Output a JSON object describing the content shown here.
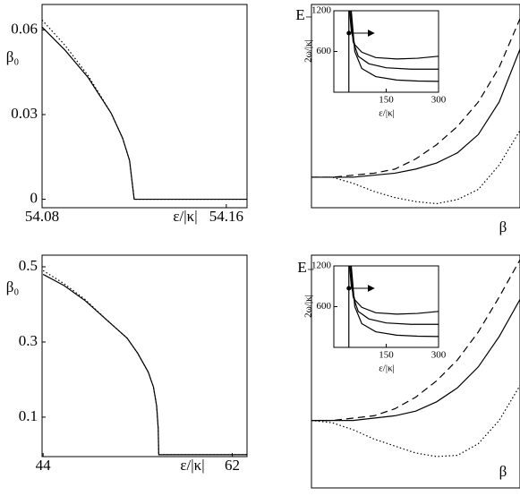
{
  "chart_data": [
    {
      "type": "line",
      "x_label": "ε/|κ|",
      "y_label": "β₀",
      "x": [
        54.08,
        54.09,
        54.1,
        54.11,
        54.115,
        54.118,
        54.12,
        54.169
      ],
      "xlim": [
        54.08,
        54.169
      ],
      "ylim": [
        -0.003,
        0.069
      ],
      "xticks": [
        54.08,
        54.16
      ],
      "yticks": [
        0,
        0.03,
        0.06
      ],
      "series": [
        {
          "color": "#000000",
          "dash": "solid",
          "values": [
            0.061,
            0.0528,
            0.0431,
            0.0305,
            0.0216,
            0.0137,
            0,
            0
          ]
        },
        {
          "color": "#000000",
          "dash": "dotted",
          "values": [
            0.0635,
            0.0545,
            0.0438,
            0.0305,
            0.0216,
            0.0137,
            0,
            0
          ]
        }
      ]
    },
    {
      "type": "line",
      "x_label": "ε/|κ|",
      "y_label": "β₀",
      "x": [
        44,
        46,
        48,
        50,
        52,
        53,
        54,
        54.5,
        54.8,
        54.95,
        55,
        63.4
      ],
      "xlim": [
        43.9,
        63.4
      ],
      "ylim": [
        -0.005,
        0.531
      ],
      "xticks": [
        44,
        62
      ],
      "yticks": [
        0.1,
        0.3,
        0.5
      ],
      "series": [
        {
          "color": "#000000",
          "dash": "solid",
          "values": [
            0.48,
            0.45,
            0.41,
            0.36,
            0.31,
            0.27,
            0.22,
            0.18,
            0.13,
            0.07,
            0,
            0
          ]
        },
        {
          "color": "#000000",
          "dash": "dotted",
          "values": [
            0.49,
            0.455,
            0.413,
            0.36,
            0.31,
            0.27,
            0.22,
            0.18,
            0.13,
            0.07,
            0,
            0
          ]
        }
      ]
    },
    {
      "type": "line",
      "x_label": "β",
      "y_label": "E₋",
      "x": [
        0,
        0.1,
        0.2,
        0.3,
        0.4,
        0.5,
        0.6,
        0.7,
        0.8,
        0.9,
        1
      ],
      "xlim": [
        0,
        1
      ],
      "ylim": [
        0,
        1
      ],
      "series": [
        {
          "color": "#000000",
          "dash": "dashed",
          "values": [
            0.15,
            0.15,
            0.16,
            0.17,
            0.19,
            0.24,
            0.31,
            0.4,
            0.52,
            0.69,
            0.93
          ]
        },
        {
          "color": "#000000",
          "dash": "solid",
          "values": [
            0.15,
            0.15,
            0.15,
            0.16,
            0.17,
            0.19,
            0.22,
            0.27,
            0.36,
            0.52,
            0.78
          ]
        },
        {
          "color": "#000000",
          "dash": "dotted",
          "values": [
            0.15,
            0.15,
            0.12,
            0.08,
            0.05,
            0.03,
            0.02,
            0.04,
            0.09,
            0.21,
            0.38
          ]
        }
      ]
    },
    {
      "type": "line",
      "x_label": "β",
      "y_label": "E₋",
      "x": [
        0,
        0.1,
        0.2,
        0.3,
        0.4,
        0.5,
        0.6,
        0.7,
        0.8,
        0.9,
        1
      ],
      "xlim": [
        0,
        1
      ],
      "ylim": [
        0,
        1
      ],
      "series": [
        {
          "color": "#000000",
          "dash": "dashed",
          "values": [
            0.29,
            0.29,
            0.3,
            0.31,
            0.34,
            0.39,
            0.46,
            0.55,
            0.67,
            0.82,
            0.98
          ]
        },
        {
          "color": "#000000",
          "dash": "solid",
          "values": [
            0.29,
            0.29,
            0.29,
            0.3,
            0.31,
            0.33,
            0.37,
            0.43,
            0.52,
            0.65,
            0.81
          ]
        },
        {
          "color": "#000000",
          "dash": "dotted",
          "values": [
            0.29,
            0.28,
            0.25,
            0.21,
            0.18,
            0.15,
            0.135,
            0.14,
            0.19,
            0.29,
            0.44
          ]
        }
      ]
    },
    {
      "type": "line",
      "x_label": "ε/|κ|",
      "y_label": "2ω/|κ|",
      "xlim": [
        0,
        300
      ],
      "ylim": [
        0,
        1200
      ],
      "xticks": [
        150,
        300
      ],
      "yticks": [
        600,
        1200
      ],
      "series": [
        {
          "color": "#000000",
          "dash": "solid",
          "x": [
            43,
            43
          ],
          "values": [
            0,
            1200
          ]
        },
        {
          "color": "#000000",
          "dash": "solid",
          "x": [
            45,
            50,
            60,
            80,
            120,
            180,
            240,
            300
          ],
          "values": [
            1200,
            900,
            700,
            590,
            510,
            490,
            500,
            530
          ]
        },
        {
          "color": "#000000",
          "dash": "solid",
          "x": [
            48,
            55,
            70,
            100,
            150,
            220,
            300
          ],
          "values": [
            1200,
            750,
            530,
            420,
            360,
            340,
            340
          ]
        },
        {
          "color": "#000000",
          "dash": "solid",
          "x": [
            50,
            60,
            80,
            120,
            180,
            240,
            300
          ],
          "values": [
            1200,
            600,
            350,
            230,
            180,
            165,
            160
          ]
        },
        {
          "color": "#000000",
          "marker": "dot",
          "x": [
            43
          ],
          "values": [
            870
          ]
        }
      ]
    },
    {
      "type": "line",
      "x_label": "ε/|κ|",
      "y_label": "2ω/|κ|",
      "xlim": [
        0,
        300
      ],
      "ylim": [
        0,
        1200
      ],
      "xticks": [
        150,
        300
      ],
      "yticks": [
        600,
        1200
      ],
      "series": [
        {
          "color": "#000000",
          "dash": "solid",
          "x": [
            43,
            43
          ],
          "values": [
            0,
            1200
          ]
        },
        {
          "color": "#000000",
          "dash": "solid",
          "x": [
            45,
            50,
            60,
            80,
            120,
            180,
            240,
            300
          ],
          "values": [
            1200,
            900,
            700,
            590,
            510,
            490,
            500,
            530
          ]
        },
        {
          "color": "#000000",
          "dash": "solid",
          "x": [
            48,
            55,
            70,
            100,
            150,
            220,
            300
          ],
          "values": [
            1200,
            750,
            530,
            420,
            360,
            340,
            340
          ]
        },
        {
          "color": "#000000",
          "dash": "solid",
          "x": [
            50,
            60,
            80,
            120,
            180,
            240,
            300
          ],
          "values": [
            1200,
            600,
            350,
            230,
            180,
            165,
            160
          ]
        },
        {
          "color": "#000000",
          "marker": "dot",
          "x": [
            43
          ],
          "values": [
            870
          ]
        }
      ]
    }
  ]
}
